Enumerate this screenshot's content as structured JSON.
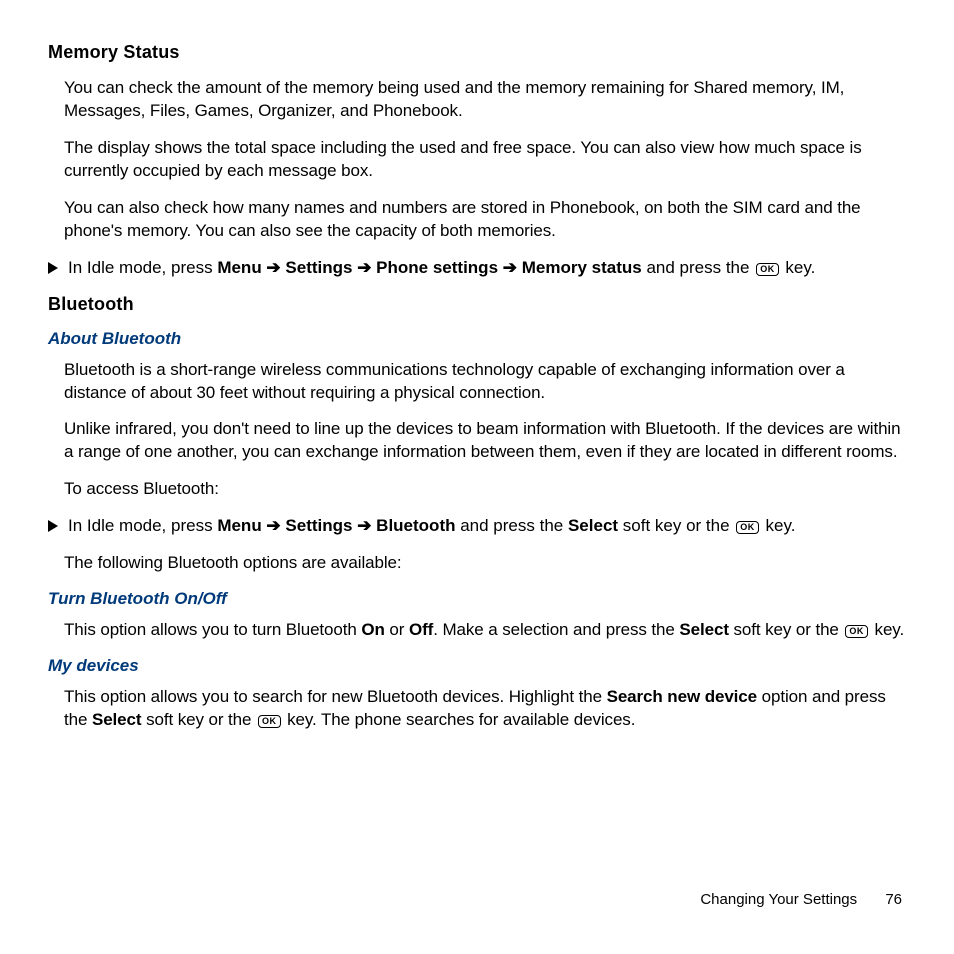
{
  "colors": {
    "text": "#000000",
    "subheading": "#003a7a",
    "background": "#ffffff"
  },
  "typography": {
    "body_fontsize_pt": 13,
    "h2_fontsize_pt": 14,
    "h3_fontsize_pt": 13,
    "font_family": "Arial"
  },
  "sections": {
    "memory": {
      "title": "Memory Status",
      "p1": "You can check the amount of the memory being used and the memory remaining for Shared memory, IM, Messages, Files, Games, Organizer, and Phonebook.",
      "p2": "The display shows the total space including the used and free space. You can also view how much space is currently occupied by each message box.",
      "p3": "You can also check how many names and numbers are stored in Phonebook, on both the SIM card and the phone's memory. You can also see the capacity of both memories.",
      "step1_pre": "In Idle mode, press ",
      "step1_menu": "Menu",
      "step1_arrow1": " ➔ ",
      "step1_settings": "Settings",
      "step1_arrow2": " ➔ ",
      "step1_phone": "Phone settings",
      "step1_arrow3": " ➔ ",
      "step1_memstat": "Memory status",
      "step1_mid": " and press the ",
      "step1_ok": "OK",
      "step1_post": " key."
    },
    "bluetooth": {
      "title": "Bluetooth",
      "about_title": "About Bluetooth",
      "p1": "Bluetooth is a short-range wireless communications technology capable of exchanging information over a distance of about 30 feet without requiring a physical connection.",
      "p2": "Unlike infrared, you don't need to line up the devices to beam information with Bluetooth. If the devices are within a range of one another, you can exchange information between them, even if they are located in different rooms.",
      "p3": "To access Bluetooth:",
      "step1_pre": "In Idle mode, press ",
      "step1_menu": "Menu",
      "step1_arrow1": " ➔ ",
      "step1_settings": "Settings",
      "step1_arrow2": " ➔ ",
      "step1_bt": "Bluetooth",
      "step1_mid": " and press the ",
      "step1_select": "Select",
      "step1_mid2": " soft key or the ",
      "step1_ok": "OK",
      "step1_post": " key.",
      "p4": "The following Bluetooth options are available:",
      "turn_title": "Turn Bluetooth On/Off",
      "turn_p_pre": "This option allows you to turn Bluetooth ",
      "turn_on": "On",
      "turn_or": " or ",
      "turn_off": "Off",
      "turn_mid": ". Make a selection and press the ",
      "turn_select": "Select",
      "turn_mid2": " soft key or the ",
      "turn_ok": "OK",
      "turn_post": " key.",
      "mydev_title": "My devices",
      "mydev_pre": "This option allows you to search for new Bluetooth devices. Highlight the ",
      "mydev_search": "Search new device",
      "mydev_mid": " option and press the ",
      "mydev_select": "Select",
      "mydev_mid2": " soft key or the ",
      "mydev_ok": "OK",
      "mydev_post": " key. The phone searches for available devices."
    }
  },
  "footer": {
    "section": "Changing Your Settings",
    "page": "76"
  }
}
